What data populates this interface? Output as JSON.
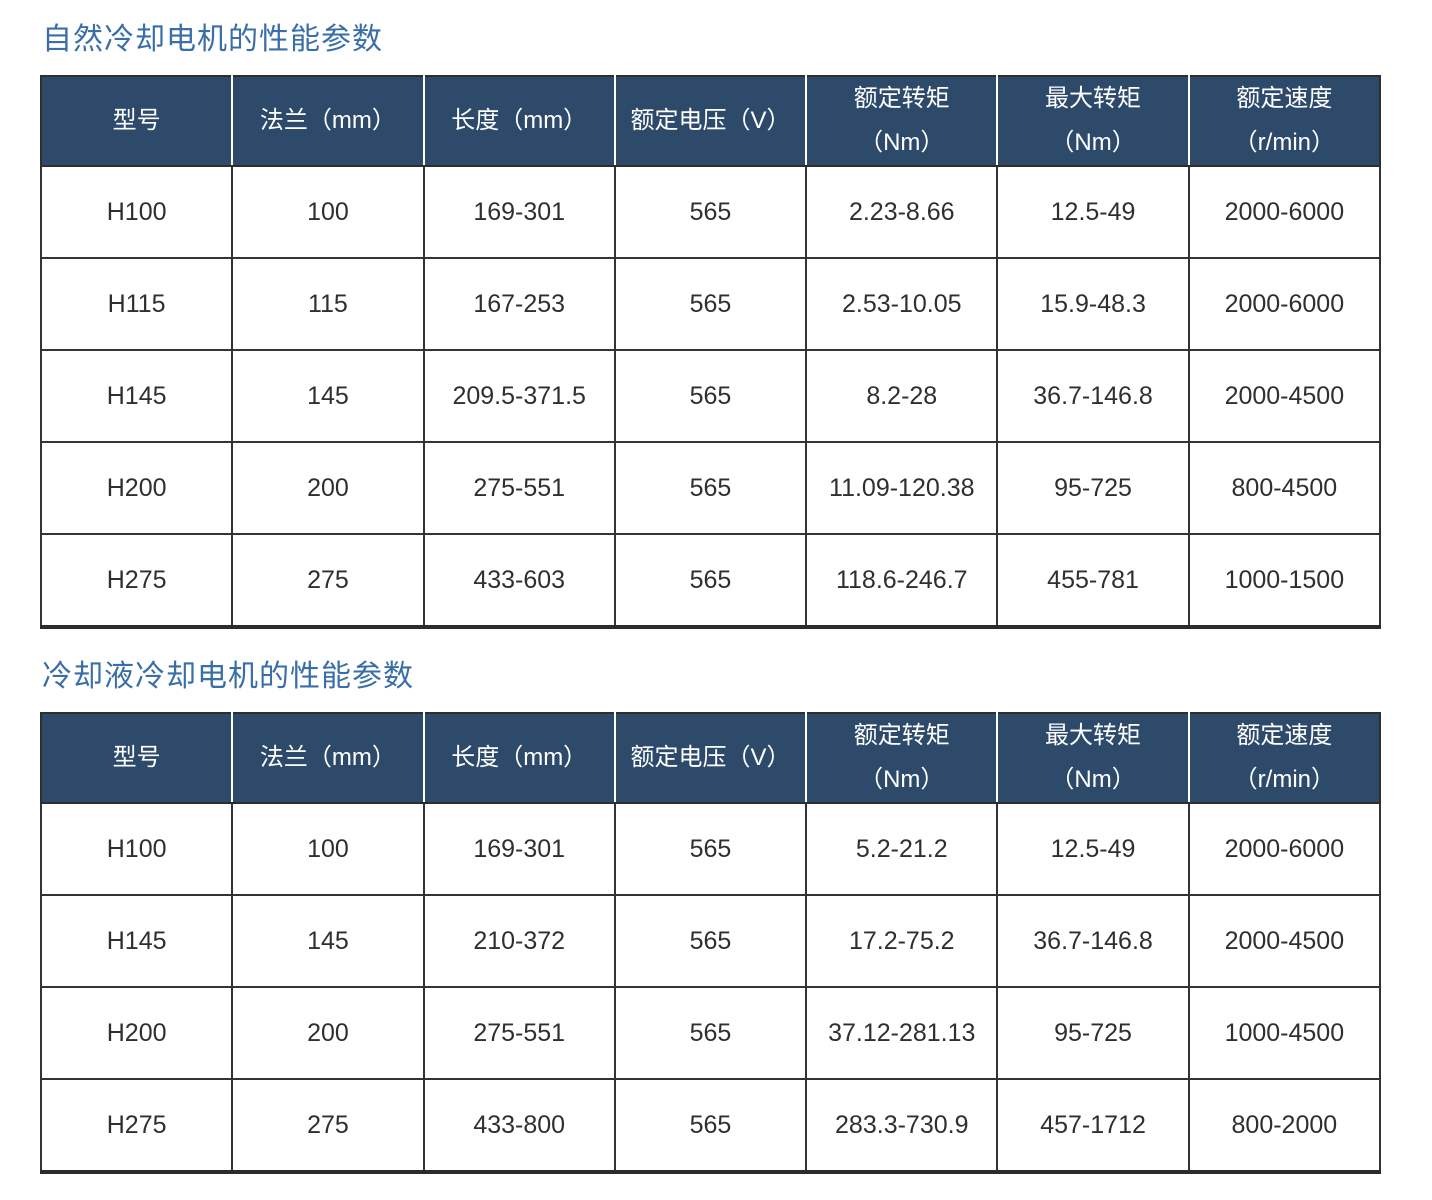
{
  "colors": {
    "header_bg": "#2E4A6B",
    "header_text": "#ffffff",
    "title_text": "#3A6EA8",
    "cell_text": "#2f2f2f",
    "border": "#333333",
    "page_bg": "#ffffff"
  },
  "tables": [
    {
      "title": "自然冷却电机的性能参数",
      "headers": [
        {
          "line1": "型号",
          "line2": ""
        },
        {
          "line1": "法兰（mm）",
          "line2": ""
        },
        {
          "line1": "长度（mm）",
          "line2": ""
        },
        {
          "line1": "额定电压（V）",
          "line2": ""
        },
        {
          "line1": "额定转矩",
          "line2": "（Nm）"
        },
        {
          "line1": "最大转矩",
          "line2": "（Nm）"
        },
        {
          "line1": "额定速度",
          "line2": "（r/min）"
        }
      ],
      "rows": [
        [
          "H100",
          "100",
          "169-301",
          "565",
          "2.23-8.66",
          "12.5-49",
          "2000-6000"
        ],
        [
          "H115",
          "115",
          "167-253",
          "565",
          "2.53-10.05",
          "15.9-48.3",
          "2000-6000"
        ],
        [
          "H145",
          "145",
          "209.5-371.5",
          "565",
          "8.2-28",
          "36.7-146.8",
          "2000-4500"
        ],
        [
          "H200",
          "200",
          "275-551",
          "565",
          "11.09-120.38",
          "95-725",
          "800-4500"
        ],
        [
          "H275",
          "275",
          "433-603",
          "565",
          "118.6-246.7",
          "455-781",
          "1000-1500"
        ]
      ]
    },
    {
      "title": "冷却液冷却电机的性能参数",
      "headers": [
        {
          "line1": "型号",
          "line2": ""
        },
        {
          "line1": "法兰（mm）",
          "line2": ""
        },
        {
          "line1": "长度（mm）",
          "line2": ""
        },
        {
          "line1": "额定电压（V）",
          "line2": ""
        },
        {
          "line1": "额定转矩",
          "line2": "（Nm）"
        },
        {
          "line1": "最大转矩",
          "line2": "（Nm）"
        },
        {
          "line1": "额定速度",
          "line2": "（r/min）"
        }
      ],
      "rows": [
        [
          "H100",
          "100",
          "169-301",
          "565",
          "5.2-21.2",
          "12.5-49",
          "2000-6000"
        ],
        [
          "H145",
          "145",
          "210-372",
          "565",
          "17.2-75.2",
          "36.7-146.8",
          "2000-4500"
        ],
        [
          "H200",
          "200",
          "275-551",
          "565",
          "37.12-281.13",
          "95-725",
          "1000-4500"
        ],
        [
          "H275",
          "275",
          "433-800",
          "565",
          "283.3-730.9",
          "457-1712",
          "800-2000"
        ]
      ]
    }
  ]
}
